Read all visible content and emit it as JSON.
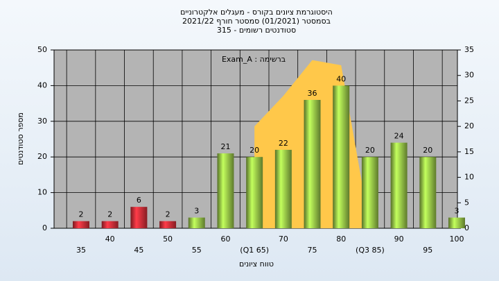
{
  "chart_data": {
    "type": "bar",
    "title": [
      "היסטוגרמת ציונים בקורס - מעגלים אלקטרוניים",
      "בסמסטר  (01/2021)  סמסטר חורף 2021/22",
      "סטודנטים רשומים - 315"
    ],
    "annotation": "Exam_A : ברשימה",
    "y_label": "מספר סטודנטים",
    "x_label": "טווח ציונים",
    "categories": [
      "35",
      "40",
      "45",
      "50",
      "55",
      "60",
      "(Q1 65)",
      "70",
      "75",
      "80",
      "(Q3 85)",
      "90",
      "95",
      "100"
    ],
    "values": [
      2,
      2,
      6,
      2,
      3,
      21,
      20,
      22,
      36,
      40,
      20,
      24,
      20,
      3
    ],
    "colors": [
      "#e0303a",
      "#e0303a",
      "#e0303a",
      "#e0303a",
      "#9ccc4a",
      "#9ccc4a",
      "#9ccc4a",
      "#9ccc4a",
      "#9ccc4a",
      "#9ccc4a",
      "#9ccc4a",
      "#9ccc4a",
      "#9ccc4a",
      "#9ccc4a"
    ],
    "area": {
      "color": "#ffc84a",
      "axis": "y2",
      "values": [
        null,
        null,
        null,
        null,
        null,
        null,
        20,
        26,
        33,
        32,
        0,
        null,
        null,
        null
      ]
    },
    "ylim": [
      0,
      50
    ],
    "yticks": [
      0,
      10,
      20,
      30,
      40,
      50
    ],
    "y2lim": [
      0,
      35
    ],
    "y2ticks": [
      0,
      5,
      10,
      15,
      20,
      25,
      30,
      35
    ],
    "grid": true
  }
}
